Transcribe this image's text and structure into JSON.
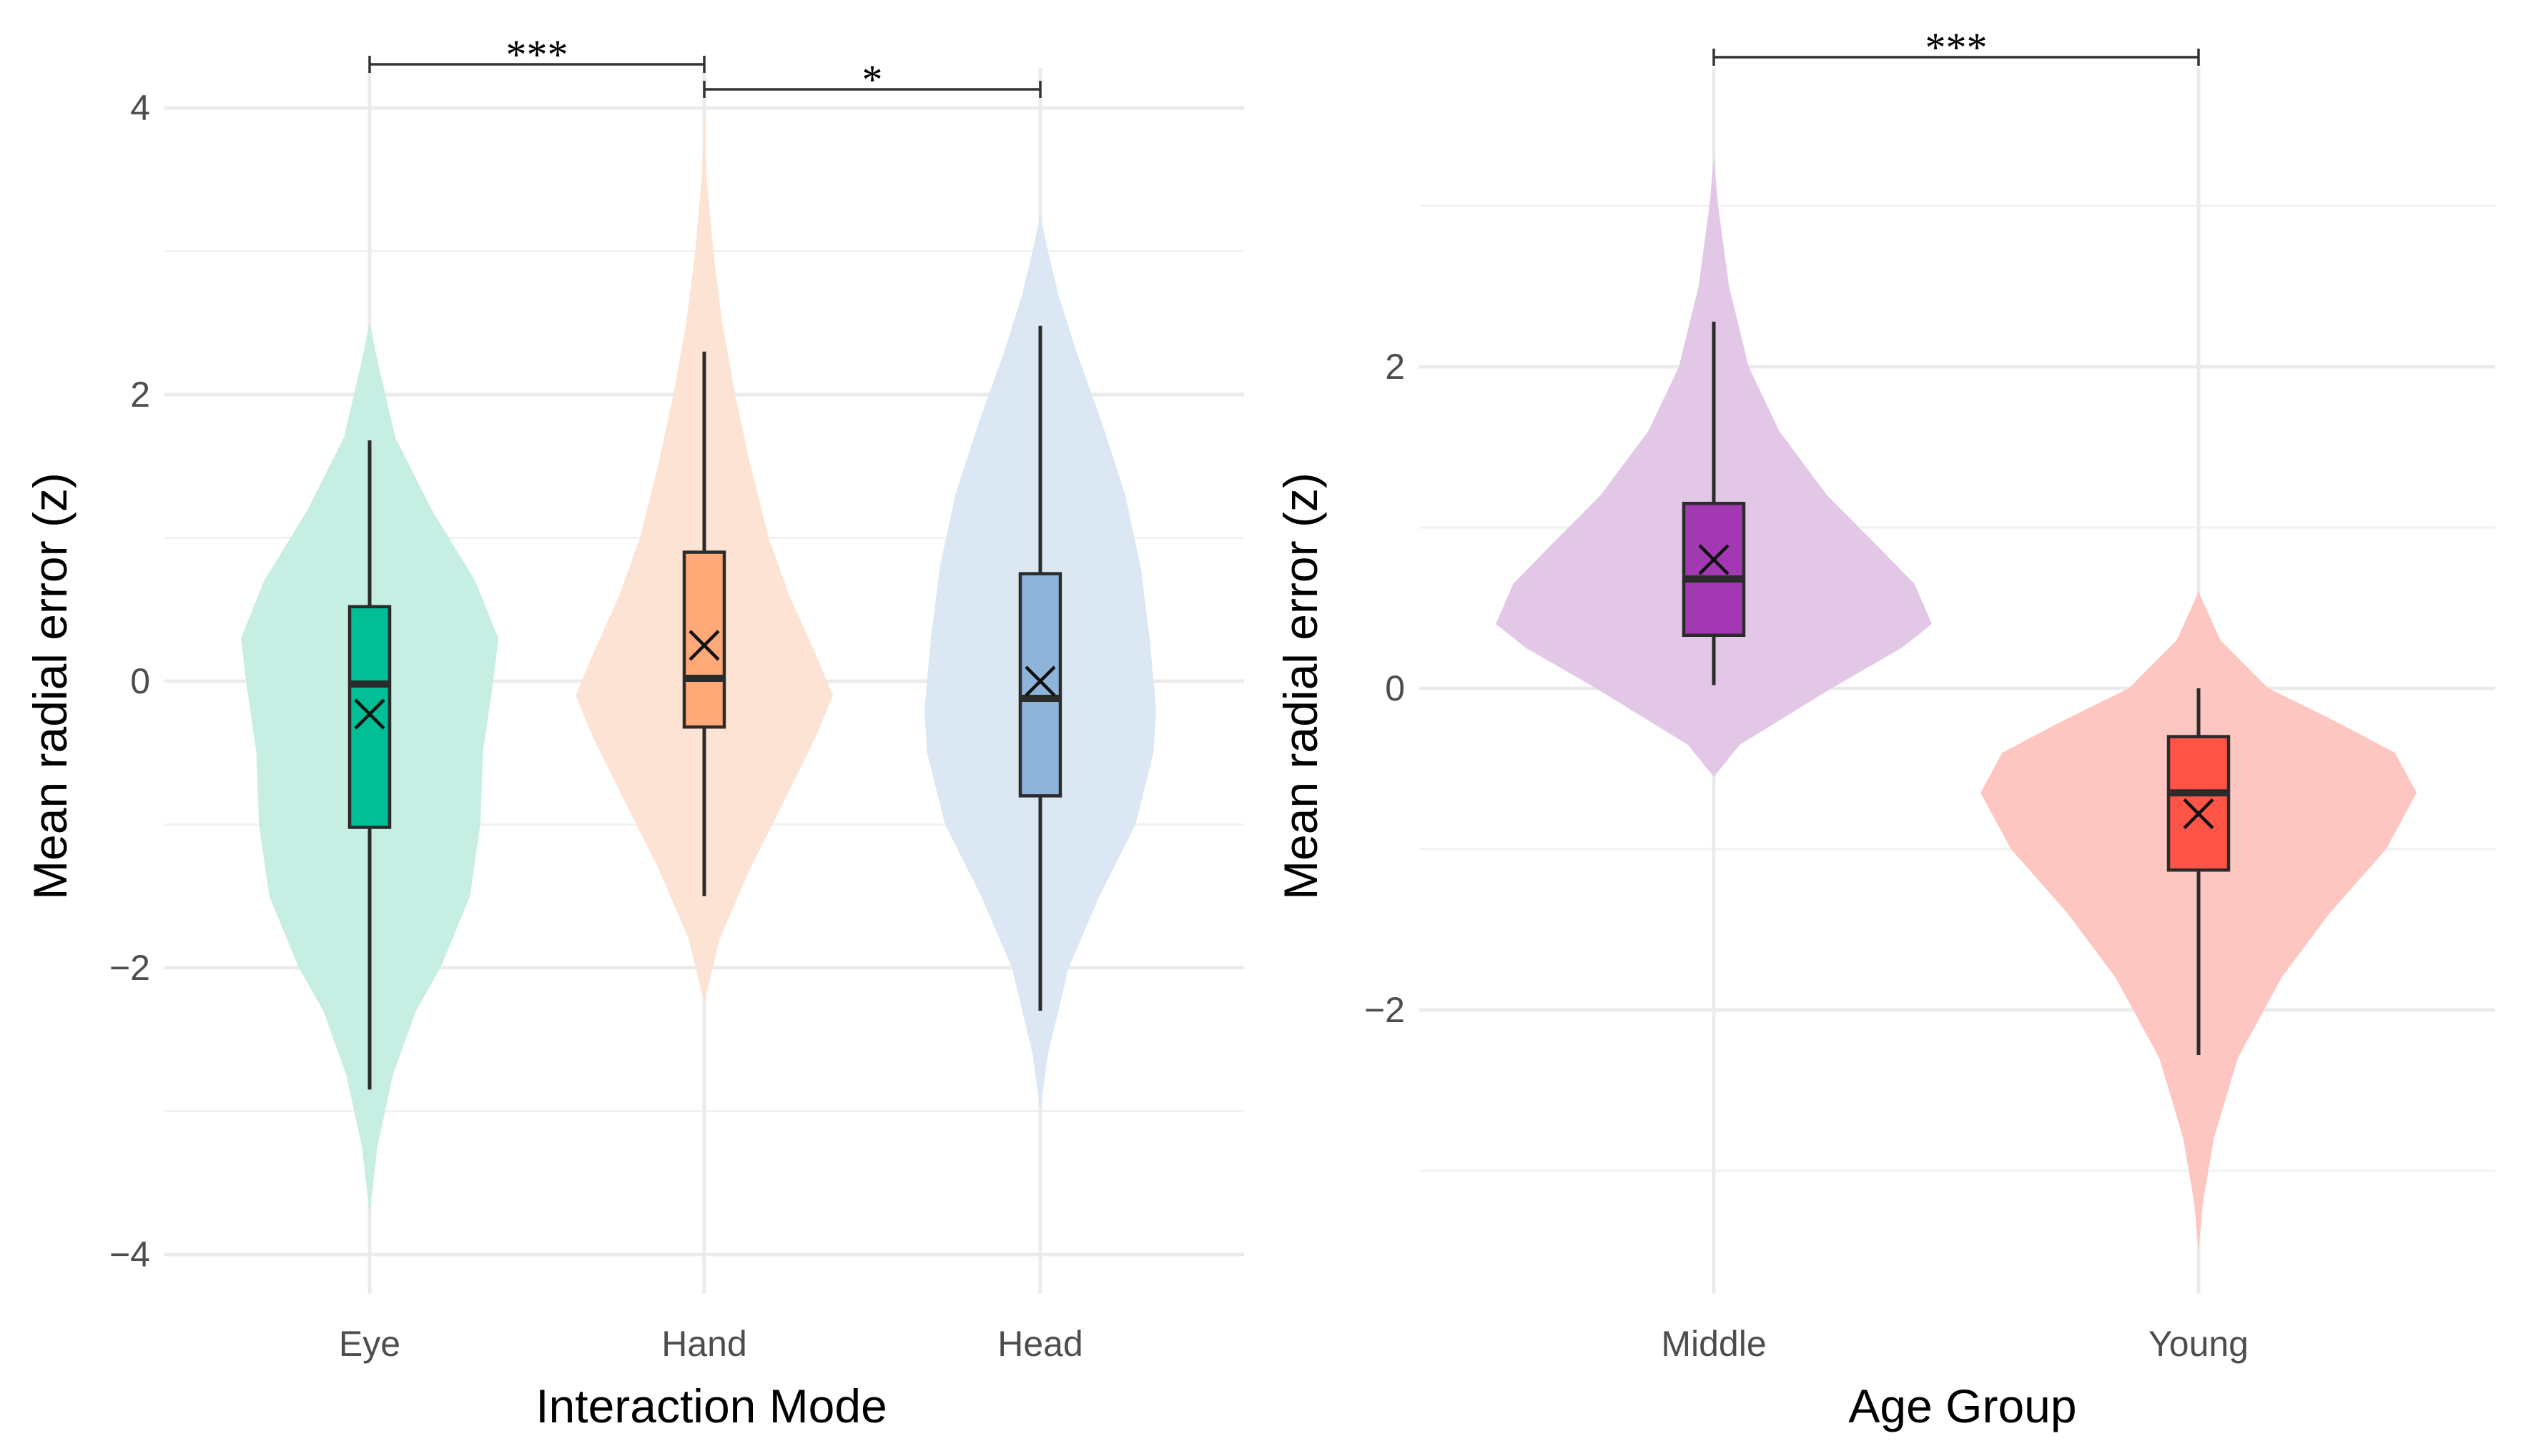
{
  "chart_data": [
    {
      "type": "violin",
      "title": "",
      "xlabel": "Interaction Mode",
      "ylabel": "Mean radial error (z)",
      "ylim": [
        -4,
        4
      ],
      "yticks": [
        -4,
        -2,
        0,
        2,
        4
      ],
      "ytick_labels": [
        "−4",
        "−2",
        "0",
        "2",
        "4"
      ],
      "grid": true,
      "legend": "none",
      "categories": [
        "Eye",
        "Hand",
        "Head"
      ],
      "groups": [
        {
          "name": "Eye",
          "color": "#00BF96",
          "violin_color": "#c6eee2",
          "box": {
            "whisker_low": -2.85,
            "q1": -1.02,
            "median": -0.02,
            "q3": 0.52,
            "whisker_high": 1.68
          },
          "mean": -0.23,
          "density": [
            [
              -3.72,
              0.0
            ],
            [
              -3.25,
              0.06
            ],
            [
              -2.75,
              0.18
            ],
            [
              -2.3,
              0.36
            ],
            [
              -2.0,
              0.55
            ],
            [
              -1.5,
              0.78
            ],
            [
              -1.0,
              0.86
            ],
            [
              -0.5,
              0.88
            ],
            [
              0.0,
              0.96
            ],
            [
              0.3,
              1.0
            ],
            [
              0.7,
              0.82
            ],
            [
              1.2,
              0.48
            ],
            [
              1.7,
              0.2
            ],
            [
              2.2,
              0.07
            ],
            [
              2.5,
              0.0
            ]
          ]
        },
        {
          "name": "Hand",
          "color": "#FFA878",
          "violin_color": "#fde3d3",
          "box": {
            "whisker_low": -1.5,
            "q1": -0.32,
            "median": 0.02,
            "q3": 0.9,
            "whisker_high": 2.3
          },
          "mean": 0.25,
          "density": [
            [
              -2.25,
              0.0
            ],
            [
              -1.8,
              0.12
            ],
            [
              -1.3,
              0.36
            ],
            [
              -0.8,
              0.64
            ],
            [
              -0.4,
              0.86
            ],
            [
              -0.1,
              1.0
            ],
            [
              0.2,
              0.86
            ],
            [
              0.6,
              0.66
            ],
            [
              1.0,
              0.5
            ],
            [
              1.5,
              0.36
            ],
            [
              2.0,
              0.24
            ],
            [
              2.5,
              0.14
            ],
            [
              3.0,
              0.07
            ],
            [
              3.5,
              0.02
            ],
            [
              4.0,
              0.0
            ]
          ]
        },
        {
          "name": "Head",
          "color": "#8FB4DA",
          "violin_color": "#dbe7f2",
          "box": {
            "whisker_low": -2.3,
            "q1": -0.8,
            "median": -0.12,
            "q3": 0.75,
            "whisker_high": 2.48
          },
          "mean": 0.0,
          "density": [
            [
              -3.0,
              0.0
            ],
            [
              -2.6,
              0.06
            ],
            [
              -2.0,
              0.22
            ],
            [
              -1.5,
              0.46
            ],
            [
              -1.0,
              0.74
            ],
            [
              -0.5,
              0.88
            ],
            [
              -0.2,
              0.9
            ],
            [
              0.3,
              0.85
            ],
            [
              0.8,
              0.78
            ],
            [
              1.3,
              0.66
            ],
            [
              1.8,
              0.48
            ],
            [
              2.3,
              0.28
            ],
            [
              2.7,
              0.14
            ],
            [
              3.0,
              0.06
            ],
            [
              3.25,
              0.0
            ]
          ]
        }
      ],
      "significance": [
        {
          "from": "Eye",
          "to": "Hand",
          "label": "***"
        },
        {
          "from": "Hand",
          "to": "Head",
          "label": "*"
        }
      ]
    },
    {
      "type": "violin",
      "title": "",
      "xlabel": "Age Group",
      "ylabel": "Mean radial error (z)",
      "ylim": [
        -3.7,
        3.8
      ],
      "yticks": [
        -2,
        0,
        2
      ],
      "ytick_labels": [
        "−2",
        "0",
        "2"
      ],
      "grid": true,
      "legend": "none",
      "categories": [
        "Middle",
        "Young"
      ],
      "groups": [
        {
          "name": "Middle",
          "color": "#A339B2",
          "violin_color": "#e2c8e6",
          "box": {
            "whisker_low": 0.02,
            "q1": 0.33,
            "median": 0.68,
            "q3": 1.15,
            "whisker_high": 2.28
          },
          "mean": 0.8,
          "density": [
            [
              -0.55,
              0.0
            ],
            [
              -0.35,
              0.12
            ],
            [
              0.0,
              0.54
            ],
            [
              0.25,
              0.86
            ],
            [
              0.4,
              1.0
            ],
            [
              0.65,
              0.92
            ],
            [
              0.9,
              0.74
            ],
            [
              1.2,
              0.52
            ],
            [
              1.6,
              0.3
            ],
            [
              2.0,
              0.16
            ],
            [
              2.5,
              0.07
            ],
            [
              3.0,
              0.02
            ],
            [
              3.3,
              0.0
            ]
          ]
        },
        {
          "name": "Young",
          "color": "#FF5446",
          "violin_color": "#fdc6c1",
          "box": {
            "whisker_low": -2.28,
            "q1": -1.13,
            "median": -0.65,
            "q3": -0.3,
            "whisker_high": 0.0
          },
          "mean": -0.78,
          "density": [
            [
              -3.5,
              0.0
            ],
            [
              -3.2,
              0.02
            ],
            [
              -2.8,
              0.07
            ],
            [
              -2.3,
              0.18
            ],
            [
              -1.8,
              0.38
            ],
            [
              -1.4,
              0.6
            ],
            [
              -1.0,
              0.86
            ],
            [
              -0.65,
              1.0
            ],
            [
              -0.4,
              0.9
            ],
            [
              -0.2,
              0.62
            ],
            [
              0.0,
              0.32
            ],
            [
              0.3,
              0.1
            ],
            [
              0.6,
              0.0
            ]
          ]
        }
      ],
      "significance": [
        {
          "from": "Middle",
          "to": "Young",
          "label": "***"
        }
      ]
    }
  ]
}
